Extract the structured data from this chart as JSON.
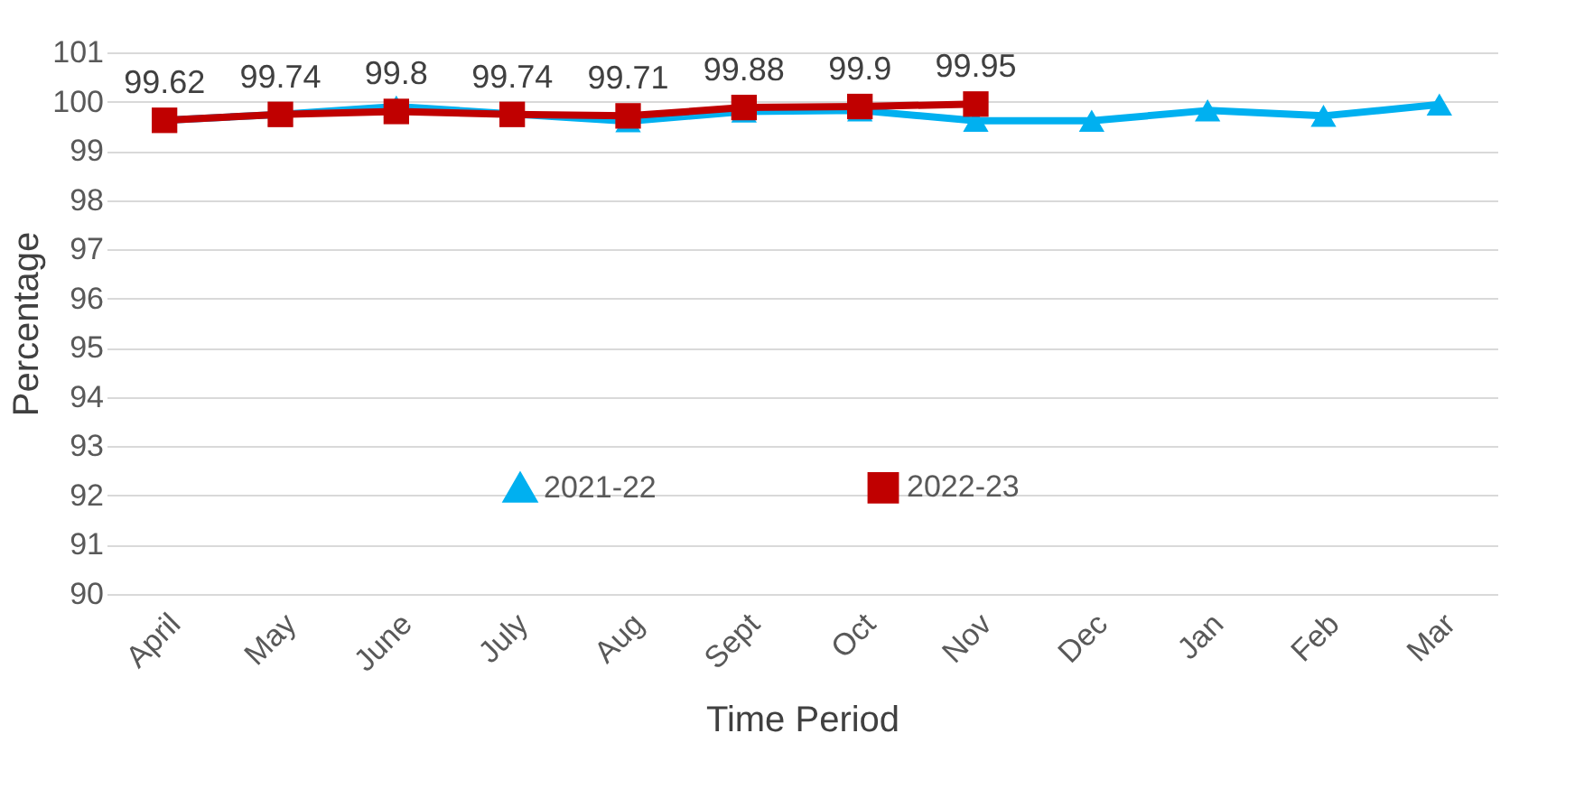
{
  "chart_data": {
    "type": "line",
    "xlabel": "Time Period",
    "ylabel": "Percentage",
    "categories": [
      "April",
      "May",
      "June",
      "July",
      "Aug",
      "Sept",
      "Oct",
      "Nov",
      "Dec",
      "Jan",
      "Feb",
      "Mar"
    ],
    "series": [
      {
        "name": "2021-22",
        "color": "#00b0f0",
        "marker": "triangle",
        "values": [
          99.62,
          99.74,
          99.9,
          99.75,
          99.6,
          99.8,
          99.82,
          99.61,
          99.61,
          99.82,
          99.71,
          99.94
        ]
      },
      {
        "name": "2022-23",
        "color": "#c00000",
        "marker": "square",
        "values": [
          99.62,
          99.74,
          99.8,
          99.74,
          99.71,
          99.88,
          99.9,
          99.95,
          null,
          null,
          null,
          null
        ],
        "value_labels": [
          "99.62",
          "99.74",
          "99.8",
          "99.74",
          "99.71",
          "99.88",
          "99.9",
          "99.95",
          null,
          null,
          null,
          null
        ]
      }
    ],
    "ylim": [
      90,
      101
    ],
    "yticks": [
      90,
      91,
      92,
      93,
      94,
      95,
      96,
      97,
      98,
      99,
      100,
      101
    ],
    "grid": "y",
    "legend": "bottom",
    "line_style": "solid"
  }
}
